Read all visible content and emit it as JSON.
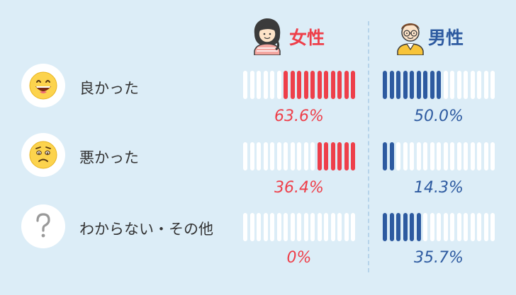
{
  "headers": {
    "female": "女性",
    "male": "男性"
  },
  "colors": {
    "female": "#ee3f4a",
    "male": "#2d5aa0",
    "empty": "#ffffff"
  },
  "chart_data": {
    "type": "bar",
    "bar_style": "segmented",
    "segments_per_bar": 17,
    "categories": [
      "良かった",
      "悪かった",
      "わからない・その他"
    ],
    "series": [
      {
        "name": "女性",
        "values": [
          63.6,
          36.4,
          0
        ],
        "labels": [
          "63.6%",
          "36.4%",
          "0%"
        ],
        "fill_from": "right"
      },
      {
        "name": "男性",
        "values": [
          50.0,
          14.3,
          35.7
        ],
        "labels": [
          "50.0%",
          "14.3%",
          "35.7%"
        ],
        "fill_from": "left"
      }
    ],
    "unit": "%",
    "ylim": [
      0,
      100
    ]
  },
  "rows": [
    {
      "icon": "grinning-face-icon",
      "label": "良かった"
    },
    {
      "icon": "worried-face-icon",
      "label": "悪かった"
    },
    {
      "icon": "question-mark-icon",
      "label": "わからない・その他"
    }
  ]
}
